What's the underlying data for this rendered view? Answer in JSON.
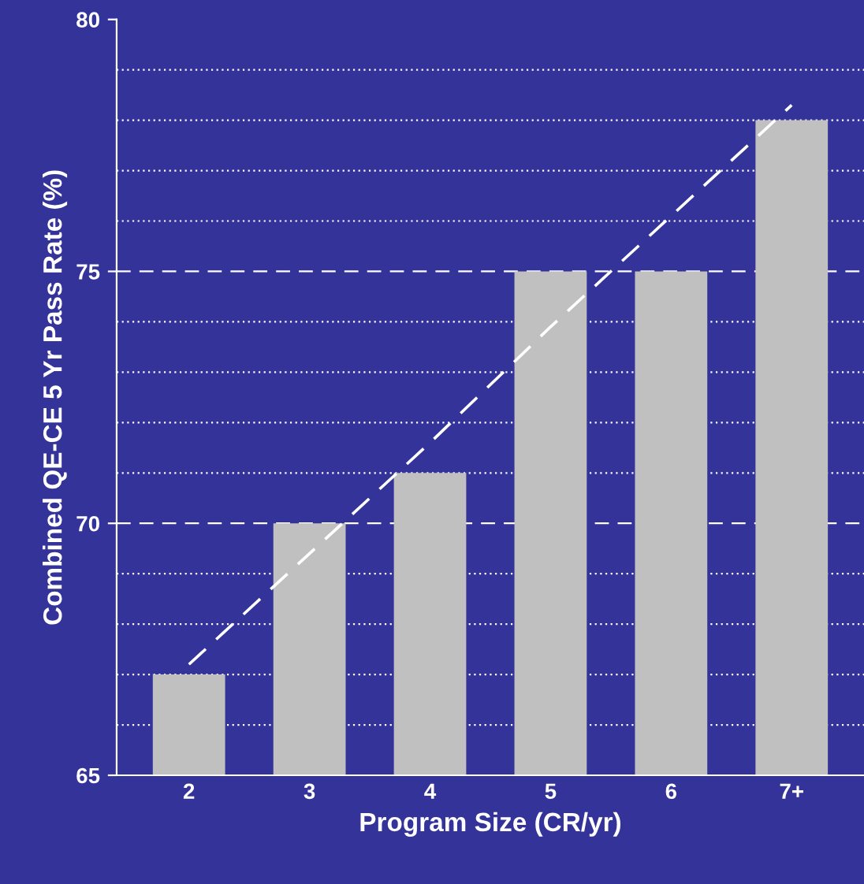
{
  "chart_data": {
    "type": "bar",
    "xlabel": "Program Size (CR/yr)",
    "ylabel": "Combined QE-CE 5 Yr Pass Rate (%)",
    "categories": [
      "2",
      "3",
      "4",
      "5",
      "6",
      "7+"
    ],
    "series": [
      {
        "color": "#c0c0c0",
        "values": [
          67,
          70,
          71,
          75,
          75,
          78
        ]
      },
      {
        "type": "line",
        "color": "#ffffff",
        "line_style": "dashed",
        "values": [
          67.2,
          69.4,
          71.6,
          73.9,
          76.1,
          78.3
        ]
      }
    ],
    "ylim": [
      65,
      80
    ],
    "yticks": [
      65,
      {
        "value": 66,
        "label": null
      },
      {
        "value": 67,
        "label": null
      },
      {
        "value": 68,
        "label": null
      },
      {
        "value": 69,
        "label": null
      },
      70,
      {
        "value": 71,
        "label": null
      },
      {
        "value": 72,
        "label": null
      },
      {
        "value": 73,
        "label": null
      },
      {
        "value": 74,
        "label": null
      },
      75,
      {
        "value": 76,
        "label": null
      },
      {
        "value": 77,
        "label": null
      },
      {
        "value": 78,
        "label": null
      },
      {
        "value": 79,
        "label": null
      },
      80
    ],
    "grid": "y"
  }
}
